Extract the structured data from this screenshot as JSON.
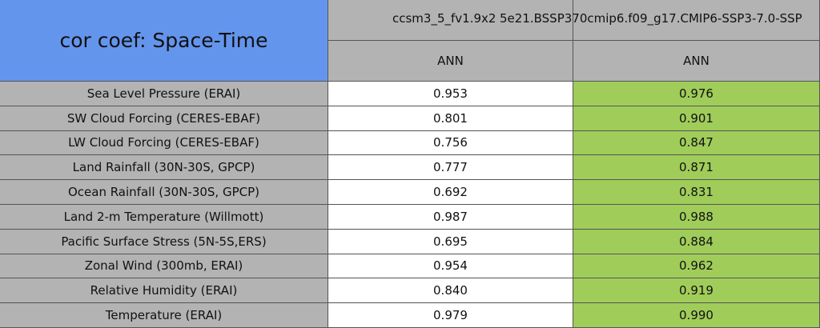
{
  "table": {
    "title": "cor coef: Space-Time",
    "columns": [
      "ccsm3_5_fv1.9x2",
      "5e21.BSSP370cmip6.f09_g17.CMIP6-SSP3-7.0-SSP"
    ],
    "periods": [
      "ANN",
      "ANN"
    ],
    "rows": [
      [
        "Sea Level Pressure (ERAI)",
        "0.953",
        "0.976"
      ],
      [
        "SW Cloud Forcing (CERES-EBAF)",
        "0.801",
        "0.901"
      ],
      [
        "LW Cloud Forcing (CERES-EBAF)",
        "0.756",
        "0.847"
      ],
      [
        "Land Rainfall (30N-30S, GPCP)",
        "0.777",
        "0.871"
      ],
      [
        "Ocean Rainfall (30N-30S, GPCP)",
        "0.692",
        "0.831"
      ],
      [
        "Land 2-m Temperature (Willmott)",
        "0.987",
        "0.988"
      ],
      [
        "Pacific Surface Stress (5N-5S,ERS)",
        "0.695",
        "0.884"
      ],
      [
        "Zonal Wind (300mb, ERAI)",
        "0.954",
        "0.962"
      ],
      [
        "Relative Humidity (ERAI)",
        "0.840",
        "0.919"
      ],
      [
        "Temperature (ERAI)",
        "0.979",
        "0.990"
      ]
    ]
  }
}
